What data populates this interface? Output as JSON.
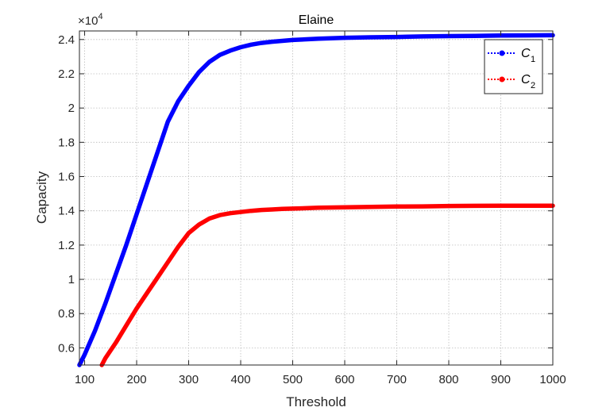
{
  "chart_data": {
    "type": "line",
    "title": "Elaine",
    "xlabel": "Threshold",
    "ylabel": "Capacity",
    "y_exponent_label": "×10",
    "y_exponent_power": "4",
    "xlim": [
      90,
      1000
    ],
    "ylim": [
      0.5,
      2.45
    ],
    "x_ticks": [
      100,
      200,
      300,
      400,
      500,
      600,
      700,
      800,
      900,
      1000
    ],
    "x_tick_labels": [
      "100",
      "200",
      "300",
      "400",
      "500",
      "600",
      "700",
      "800",
      "900",
      "1000"
    ],
    "y_ticks": [
      0.6,
      0.8,
      1.0,
      1.2,
      1.4,
      1.6,
      1.8,
      2.0,
      2.2,
      2.4
    ],
    "y_tick_labels": [
      "0.6",
      "0.8",
      "1",
      "1.2",
      "1.4",
      "1.6",
      "1.8",
      "2",
      "2.2",
      "2.4"
    ],
    "grid": true,
    "legend_position": "top-right",
    "series": [
      {
        "name": "C",
        "name_subscript": "1",
        "color": "#0000ff",
        "x": [
          90,
          100,
          120,
          140,
          160,
          180,
          200,
          220,
          240,
          260,
          280,
          300,
          320,
          340,
          360,
          380,
          400,
          420,
          440,
          460,
          480,
          500,
          550,
          600,
          650,
          700,
          750,
          800,
          850,
          900,
          950,
          1000
        ],
        "y": [
          0.5,
          0.56,
          0.7,
          0.86,
          1.03,
          1.2,
          1.38,
          1.56,
          1.74,
          1.92,
          2.04,
          2.13,
          2.21,
          2.27,
          2.31,
          2.335,
          2.355,
          2.37,
          2.38,
          2.387,
          2.392,
          2.397,
          2.405,
          2.41,
          2.413,
          2.415,
          2.418,
          2.42,
          2.421,
          2.423,
          2.424,
          2.425
        ]
      },
      {
        "name": "C",
        "name_subscript": "2",
        "color": "#ff0000",
        "x": [
          133,
          140,
          160,
          180,
          200,
          220,
          240,
          260,
          280,
          300,
          320,
          340,
          360,
          380,
          400,
          420,
          440,
          460,
          480,
          500,
          550,
          600,
          650,
          700,
          750,
          800,
          850,
          900,
          950,
          1000
        ],
        "y": [
          0.5,
          0.54,
          0.63,
          0.73,
          0.83,
          0.92,
          1.01,
          1.1,
          1.19,
          1.27,
          1.32,
          1.355,
          1.375,
          1.386,
          1.393,
          1.4,
          1.405,
          1.408,
          1.411,
          1.413,
          1.418,
          1.421,
          1.423,
          1.425,
          1.426,
          1.428,
          1.429,
          1.43,
          1.43,
          1.43
        ]
      }
    ]
  }
}
